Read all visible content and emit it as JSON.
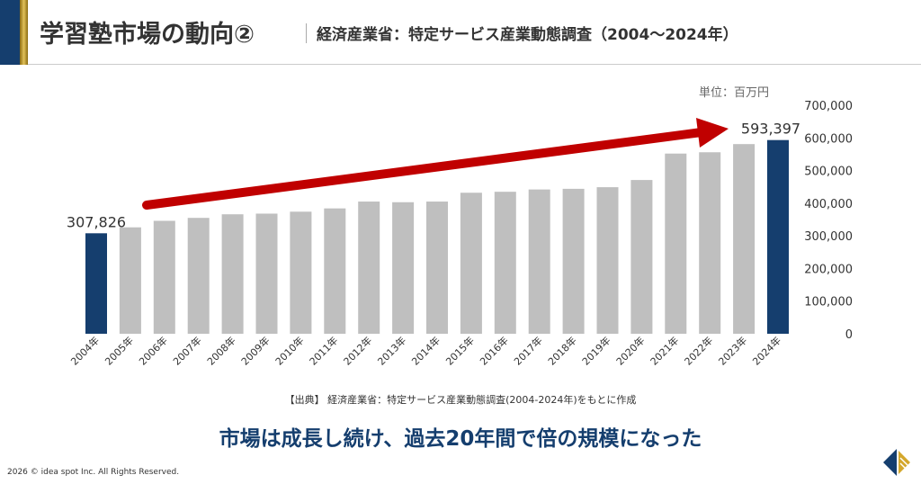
{
  "header": {
    "title": "学習塾市場の動向②",
    "subtitle": "経済産業省：特定サービス産業動態調査（2004～2024年）"
  },
  "unit_label": "単位：百万円",
  "source": "【出典】 経済産業省：特定サービス産業動態調査(2004-2024年)をもとに作成",
  "message": "市場は成長し続け、過去20年間で倍の規模になった",
  "copyright": "2026 © idea spot Inc. All Rights Reserved.",
  "colors": {
    "highlight": "#153e6e",
    "bar": "#bfbfbf",
    "arrow": "#c00000"
  },
  "chart_data": {
    "type": "bar",
    "categories": [
      "2004年",
      "2005年",
      "2006年",
      "2007年",
      "2008年",
      "2009年",
      "2010年",
      "2011年",
      "2012年",
      "2013年",
      "2014年",
      "2015年",
      "2016年",
      "2017年",
      "2018年",
      "2019年",
      "2020年",
      "2021年",
      "2022年",
      "2023年",
      "2024年"
    ],
    "values": [
      307826,
      326000,
      346000,
      355000,
      366000,
      368000,
      374000,
      384000,
      405000,
      403000,
      405000,
      432000,
      435000,
      442000,
      444000,
      449000,
      471000,
      552000,
      556000,
      581000,
      593397
    ],
    "highlighted": [
      "2004年",
      "2024年"
    ],
    "data_labels": {
      "2004年": "307,826",
      "2024年": "593,397"
    },
    "ylim": [
      0,
      700000
    ],
    "yticks": [
      "0",
      "100,000",
      "200,000",
      "300,000",
      "400,000",
      "500,000",
      "600,000",
      "700,000"
    ],
    "y_axis_side": "right",
    "grid": false,
    "annotation": "upward trend arrow"
  }
}
